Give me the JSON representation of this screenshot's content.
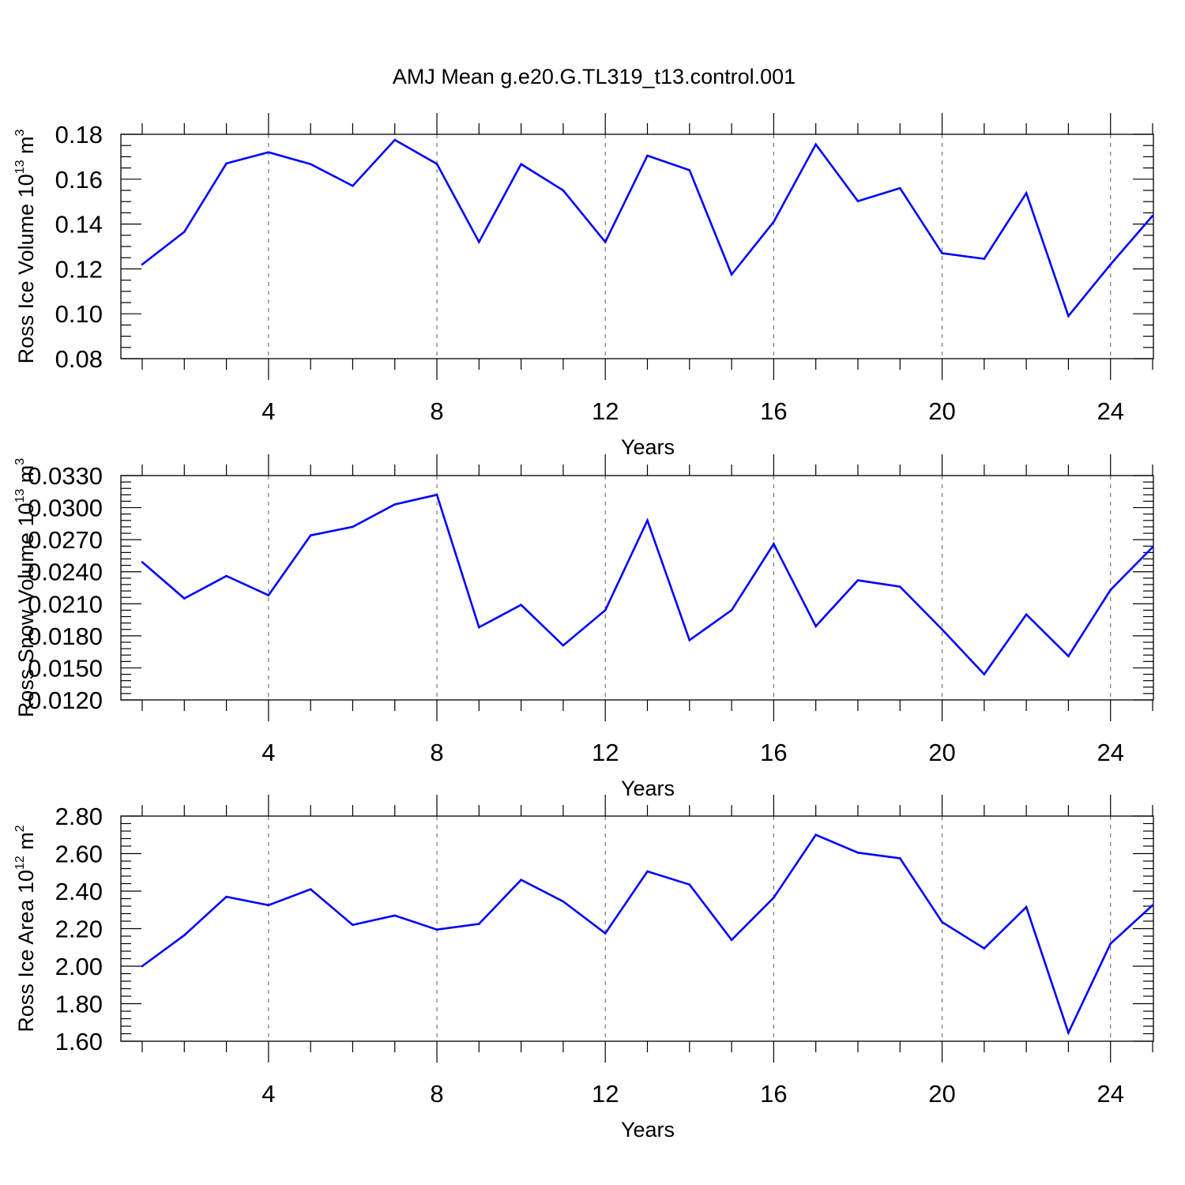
{
  "title": "AMJ Mean g.e20.G.TL319_t13.control.001",
  "colors": {
    "line": "#0000ff",
    "grid": "#777777",
    "frame": "#000000"
  },
  "chart_data": [
    {
      "type": "line",
      "xlabel": "Years",
      "ylabel": "Ross Ice Volume 10",
      "ylabel_exp": "13",
      "ylabel_unit": " m",
      "ylabel_unit_exp": "3",
      "xlim": [
        1,
        25
      ],
      "ylim": [
        0.08,
        0.18
      ],
      "x_ticks": [
        4,
        8,
        12,
        16,
        20,
        24
      ],
      "x_tick_labels": [
        "4",
        "8",
        "12",
        "16",
        "20",
        "24"
      ],
      "y_ticks": [
        0.08,
        0.1,
        0.12,
        0.14,
        0.16,
        0.18
      ],
      "y_tick_labels": [
        "0.08",
        "0.10",
        "0.12",
        "0.14",
        "0.16",
        "0.18"
      ],
      "y_minor_step": 0.005,
      "grid": "vertical dashed at major x ticks",
      "x": [
        1,
        2,
        3,
        4,
        5,
        6,
        7,
        8,
        9,
        10,
        11,
        12,
        13,
        14,
        15,
        16,
        17,
        18,
        19,
        20,
        21,
        22,
        23,
        24,
        25
      ],
      "series": [
        {
          "values": [
            0.122,
            0.1365,
            0.167,
            0.172,
            0.1667,
            0.157,
            0.1775,
            0.1668,
            0.132,
            0.1667,
            0.155,
            0.132,
            0.1705,
            0.164,
            0.1175,
            0.141,
            0.1755,
            0.1502,
            0.156,
            0.127,
            0.1245,
            0.1538,
            0.099,
            0.122,
            0.1437
          ]
        }
      ]
    },
    {
      "type": "line",
      "xlabel": "Years",
      "ylabel": "Ross Snow Volume 10",
      "ylabel_exp": "13",
      "ylabel_unit": " m",
      "ylabel_unit_exp": "3",
      "xlim": [
        1,
        25
      ],
      "ylim": [
        0.012,
        0.033
      ],
      "x_ticks": [
        4,
        8,
        12,
        16,
        20,
        24
      ],
      "x_tick_labels": [
        "4",
        "8",
        "12",
        "16",
        "20",
        "24"
      ],
      "y_ticks": [
        0.012,
        0.015,
        0.018,
        0.021,
        0.024,
        0.027,
        0.03,
        0.033
      ],
      "y_tick_labels": [
        "0.0120",
        "0.0150",
        "0.0180",
        "0.0210",
        "0.0240",
        "0.0270",
        "0.0300",
        "0.0330"
      ],
      "y_minor_step": 0.0006,
      "grid": "vertical dashed at major x ticks",
      "x": [
        1,
        2,
        3,
        4,
        5,
        6,
        7,
        8,
        9,
        10,
        11,
        12,
        13,
        14,
        15,
        16,
        17,
        18,
        19,
        20,
        21,
        22,
        23,
        24,
        25
      ],
      "series": [
        {
          "values": [
            0.0249,
            0.0215,
            0.0236,
            0.0218,
            0.0274,
            0.0282,
            0.0303,
            0.0312,
            0.0188,
            0.0209,
            0.0171,
            0.0204,
            0.0288,
            0.0176,
            0.0204,
            0.0266,
            0.0189,
            0.0232,
            0.0226,
            0.0186,
            0.0144,
            0.02,
            0.0161,
            0.0223,
            0.0263
          ]
        }
      ]
    },
    {
      "type": "line",
      "xlabel": "Years",
      "ylabel": "Ross Ice Area 10",
      "ylabel_exp": "12",
      "ylabel_unit": " m",
      "ylabel_unit_exp": "2",
      "xlim": [
        1,
        25
      ],
      "ylim": [
        1.6,
        2.8
      ],
      "x_ticks": [
        4,
        8,
        12,
        16,
        20,
        24
      ],
      "x_tick_labels": [
        "4",
        "8",
        "12",
        "16",
        "20",
        "24"
      ],
      "y_ticks": [
        1.6,
        1.8,
        2.0,
        2.2,
        2.4,
        2.6,
        2.8
      ],
      "y_tick_labels": [
        "1.60",
        "1.80",
        "2.00",
        "2.20",
        "2.40",
        "2.60",
        "2.80"
      ],
      "y_minor_step": 0.04,
      "grid": "vertical dashed at major x ticks",
      "x": [
        1,
        2,
        3,
        4,
        5,
        6,
        7,
        8,
        9,
        10,
        11,
        12,
        13,
        14,
        15,
        16,
        17,
        18,
        19,
        20,
        21,
        22,
        23,
        24,
        25
      ],
      "series": [
        {
          "values": [
            2.0,
            2.165,
            2.37,
            2.325,
            2.41,
            2.22,
            2.27,
            2.195,
            2.225,
            2.46,
            2.345,
            2.175,
            2.505,
            2.435,
            2.14,
            2.365,
            2.7,
            2.605,
            2.575,
            2.235,
            2.095,
            2.315,
            1.645,
            2.12,
            2.325
          ]
        }
      ]
    }
  ]
}
